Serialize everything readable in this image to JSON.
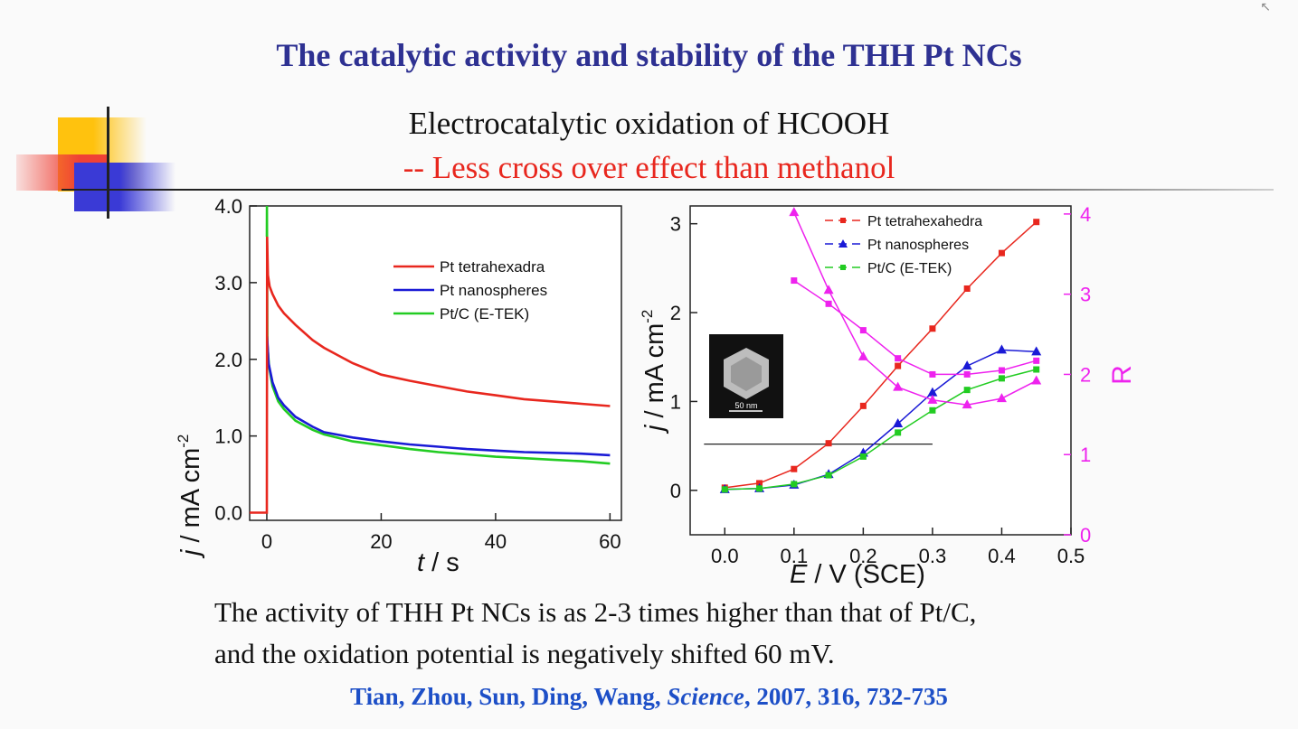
{
  "slide": {
    "title": "The catalytic activity and stability of the THH Pt NCs",
    "subtitle1": "Electrocatalytic oxidation of HCOOH",
    "subtitle2": "-- Less cross over effect than methanol",
    "summary_line1": "The activity of THH Pt NCs is as 2-3 times higher than that of Pt/C,",
    "summary_line2": "and the oxidation potential is negatively shifted 60 mV.",
    "citation_authors": "Tian, Zhou,  Sun, Ding, Wang,",
    "citation_journal": "Science",
    "citation_ref": ", 2007, 316, 732-735"
  },
  "colors": {
    "title": "#2e3192",
    "red": "#e8271e",
    "blue": "#1a1ad6",
    "green": "#22cc22",
    "magenta": "#ee22ee",
    "deco_yellow": "#ffc20e",
    "deco_red": "#ef4136",
    "deco_blue": "#3a3ad6"
  },
  "chart_data": [
    {
      "type": "line",
      "xlabel_italic": "t",
      "xlabel_rest": " / s",
      "ylabel_italic": "j",
      "ylabel_rest": " / mA cm",
      "ylabel_sup": "-2",
      "xlim": [
        -3,
        62
      ],
      "ylim": [
        -0.1,
        4.0
      ],
      "xticks": [
        "0",
        "20",
        "40",
        "60"
      ],
      "yticks": [
        "0.0",
        "1.0",
        "2.0",
        "3.0",
        "4.0"
      ],
      "legend_position": "top-right",
      "series": [
        {
          "name": "Pt tetrahexadra",
          "color": "#e8271e",
          "x": [
            -3,
            0,
            0.05,
            0.2,
            0.5,
            1,
            2,
            3,
            5,
            8,
            10,
            15,
            20,
            25,
            30,
            35,
            40,
            45,
            50,
            55,
            60
          ],
          "y": [
            0,
            0,
            3.6,
            3.1,
            2.95,
            2.85,
            2.7,
            2.6,
            2.45,
            2.25,
            2.15,
            1.95,
            1.8,
            1.72,
            1.65,
            1.58,
            1.53,
            1.48,
            1.45,
            1.42,
            1.39
          ]
        },
        {
          "name": "Pt nanospheres",
          "color": "#1a1ad6",
          "x": [
            0.05,
            0.3,
            1,
            2,
            3,
            5,
            8,
            10,
            15,
            20,
            25,
            30,
            35,
            40,
            45,
            50,
            55,
            60
          ],
          "y": [
            2.3,
            1.95,
            1.7,
            1.5,
            1.4,
            1.25,
            1.12,
            1.05,
            0.98,
            0.93,
            0.89,
            0.86,
            0.83,
            0.81,
            0.79,
            0.78,
            0.77,
            0.75
          ]
        },
        {
          "name": "Pt/C (E-TEK)",
          "color": "#22cc22",
          "x": [
            0,
            0.02,
            0.1,
            0.4,
            1,
            2,
            3,
            5,
            8,
            10,
            15,
            20,
            25,
            30,
            35,
            40,
            45,
            50,
            55,
            60
          ],
          "y": [
            3.6,
            4.0,
            2.2,
            1.9,
            1.65,
            1.45,
            1.35,
            1.2,
            1.08,
            1.02,
            0.93,
            0.88,
            0.83,
            0.79,
            0.76,
            0.73,
            0.71,
            0.69,
            0.67,
            0.64
          ]
        }
      ]
    },
    {
      "type": "line",
      "markers": true,
      "xlabel_italic": "E",
      "xlabel_rest": " / V (SCE)",
      "ylabel_italic": "j",
      "ylabel_rest": " / mA cm",
      "ylabel_sup": "-2",
      "y2label": "R",
      "xlim": [
        -0.05,
        0.5
      ],
      "ylim": [
        -0.5,
        3.2
      ],
      "y2lim": [
        0,
        4.1
      ],
      "xticks": [
        "0.0",
        "0.1",
        "0.2",
        "0.3",
        "0.4",
        "0.5"
      ],
      "yticks": [
        "0",
        "1",
        "2",
        "3"
      ],
      "y2ticks": [
        "0",
        "1",
        "2",
        "3",
        "4"
      ],
      "legend_position": "top-center",
      "inset_label": "50 nm",
      "reference_line": {
        "x": [
          -0.03,
          0.3
        ],
        "y": 0.52
      },
      "series": [
        {
          "name": "Pt tetrahexahedra",
          "axis": "left",
          "marker": "square",
          "color": "#e8271e",
          "x": [
            0,
            0.05,
            0.1,
            0.15,
            0.2,
            0.25,
            0.3,
            0.35,
            0.4,
            0.45
          ],
          "y": [
            0.03,
            0.08,
            0.24,
            0.53,
            0.95,
            1.4,
            1.82,
            2.27,
            2.67,
            3.02
          ]
        },
        {
          "name": "Pt nanospheres",
          "axis": "left",
          "marker": "triangle",
          "color": "#1a1ad6",
          "x": [
            0,
            0.05,
            0.1,
            0.15,
            0.2,
            0.25,
            0.3,
            0.35,
            0.4,
            0.45
          ],
          "y": [
            0.01,
            0.02,
            0.06,
            0.18,
            0.42,
            0.75,
            1.1,
            1.4,
            1.58,
            1.56
          ]
        },
        {
          "name": "Pt/C (E-TEK)",
          "axis": "left",
          "marker": "square",
          "color": "#22cc22",
          "x": [
            0,
            0.05,
            0.1,
            0.15,
            0.2,
            0.25,
            0.3,
            0.35,
            0.4,
            0.45
          ],
          "y": [
            0.01,
            0.02,
            0.07,
            0.17,
            0.38,
            0.65,
            0.9,
            1.13,
            1.26,
            1.36
          ]
        },
        {
          "name": "",
          "axis": "right",
          "marker": "triangle",
          "color": "#ee22ee",
          "x": [
            0.1,
            0.15,
            0.2,
            0.25,
            0.3,
            0.35,
            0.4,
            0.45
          ],
          "y": [
            4.02,
            3.05,
            2.22,
            1.84,
            1.68,
            1.62,
            1.7,
            1.92
          ]
        },
        {
          "name": "",
          "axis": "right",
          "marker": "square",
          "color": "#ee22ee",
          "x": [
            0.1,
            0.15,
            0.2,
            0.25,
            0.3,
            0.35,
            0.4,
            0.45
          ],
          "y": [
            3.17,
            2.88,
            2.55,
            2.2,
            2.0,
            2.0,
            2.05,
            2.17
          ]
        }
      ]
    }
  ]
}
